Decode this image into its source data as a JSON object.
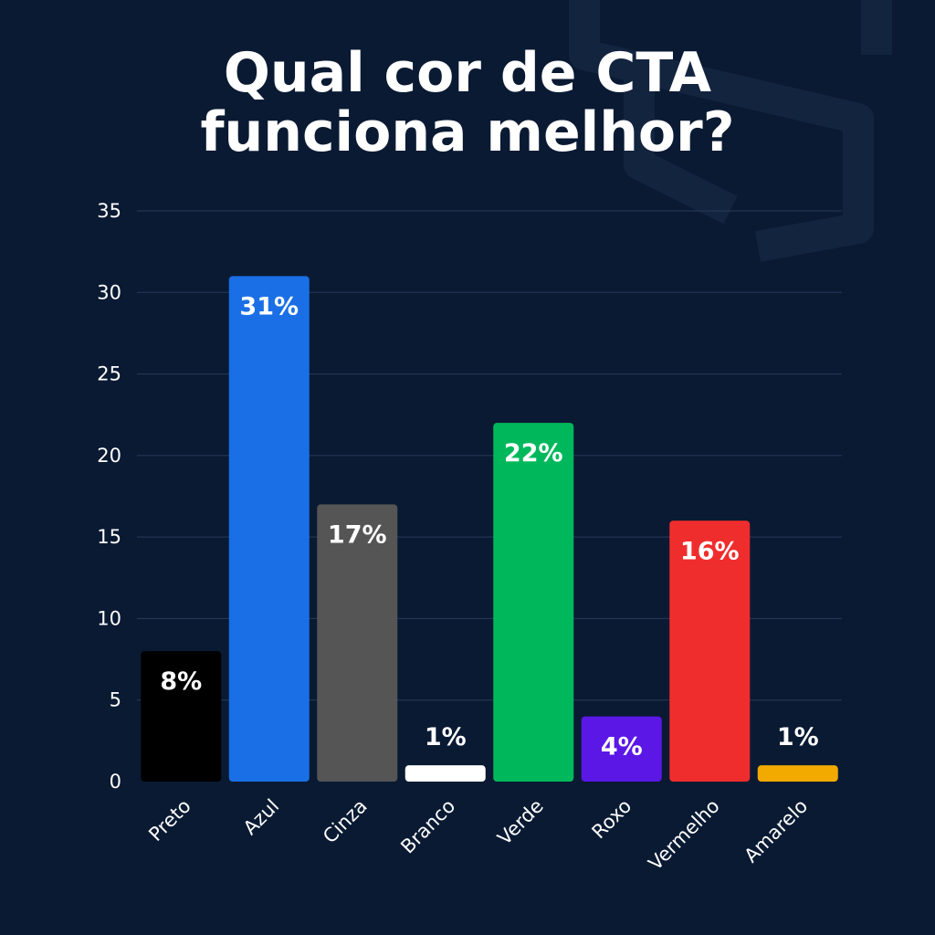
{
  "colors": {
    "background": "#0a1a33",
    "gridline": "#2a3a58",
    "text": "#ffffff",
    "watermark": "#13243f"
  },
  "chart_data": {
    "type": "bar",
    "title_lines": [
      "Qual cor de CTA",
      "funciona melhor?"
    ],
    "xlabel": "",
    "ylabel": "",
    "ylim": [
      0,
      35
    ],
    "yticks": [
      0,
      5,
      10,
      15,
      20,
      25,
      30,
      35
    ],
    "ytick_labels": [
      "0",
      "5",
      "10",
      "15",
      "20",
      "25",
      "30",
      "35"
    ],
    "grid": true,
    "categories": [
      "Preto",
      "Azul",
      "Cinza",
      "Branco",
      "Verde",
      "Roxo",
      "Vermelho",
      "Amarelo"
    ],
    "values": [
      8,
      31,
      17,
      1,
      22,
      4,
      16,
      1
    ],
    "data_labels": [
      "8%",
      "31%",
      "17%",
      "1%",
      "22%",
      "4%",
      "16%",
      "1%"
    ],
    "bar_colors": [
      "#000000",
      "#1a6fe6",
      "#555555",
      "#ffffff",
      "#00b85c",
      "#5b17e6",
      "#f02d2d",
      "#f2a900"
    ]
  }
}
